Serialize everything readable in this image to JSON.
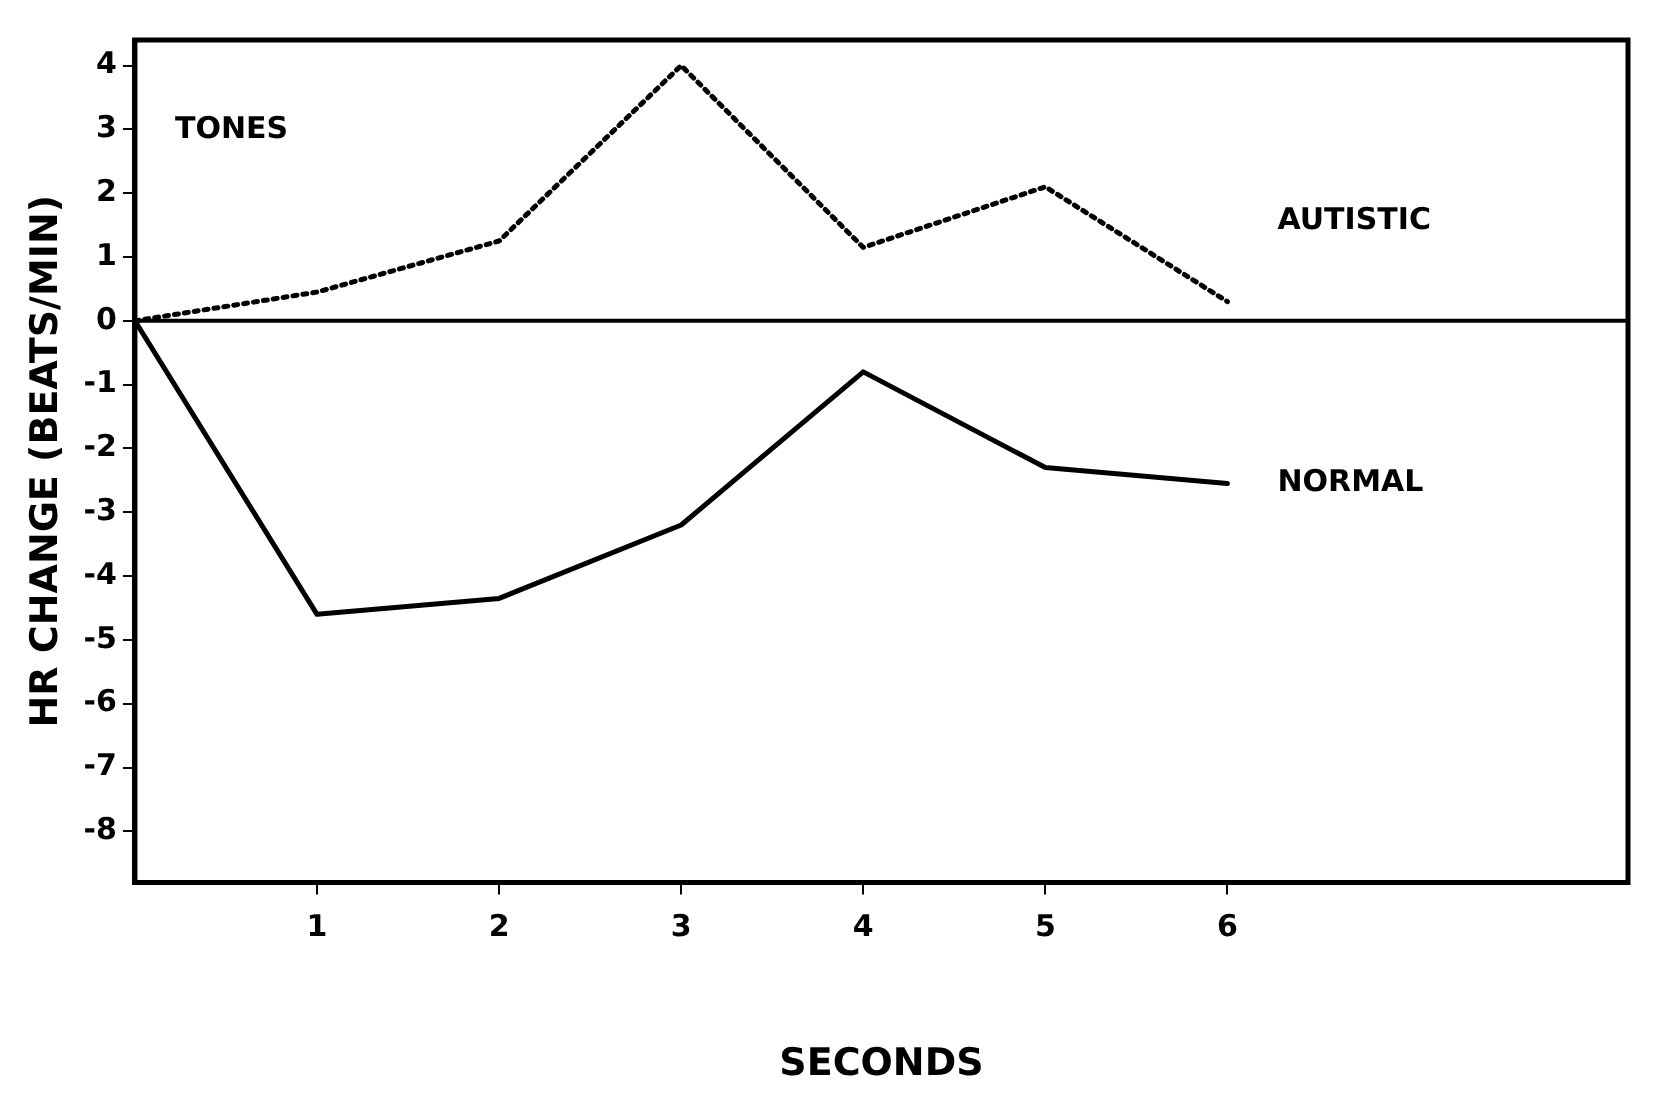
{
  "chart_data": {
    "type": "line",
    "xlabel": "SECONDS",
    "ylabel": "HR CHANGE (BEATS/MIN)",
    "x": [
      0,
      1,
      2,
      3,
      4,
      5,
      6
    ],
    "series": [
      {
        "name": "AUTISTIC",
        "color": "#000000",
        "line_style": "dotted",
        "values": [
          0,
          0.45,
          1.25,
          4.0,
          1.15,
          2.1,
          0.3
        ]
      },
      {
        "name": "NORMAL",
        "color": "#000000",
        "line_style": "solid",
        "values": [
          0,
          -4.6,
          -4.35,
          -3.2,
          -0.8,
          -2.3,
          -2.55
        ]
      }
    ],
    "annotations": [
      "TONES"
    ],
    "ref_lines": [
      {
        "axis": "y",
        "value": 0
      }
    ],
    "xlim": [
      0,
      8.2
    ],
    "xticks": [
      1,
      2,
      3,
      4,
      5,
      6
    ],
    "ylim": [
      -8.8,
      4.4
    ],
    "yticks": [
      -8,
      -7,
      -6,
      -5,
      -4,
      -3,
      -2,
      -1,
      0,
      1,
      2,
      3,
      4
    ],
    "grid": false,
    "legend": false,
    "marker": "none"
  }
}
